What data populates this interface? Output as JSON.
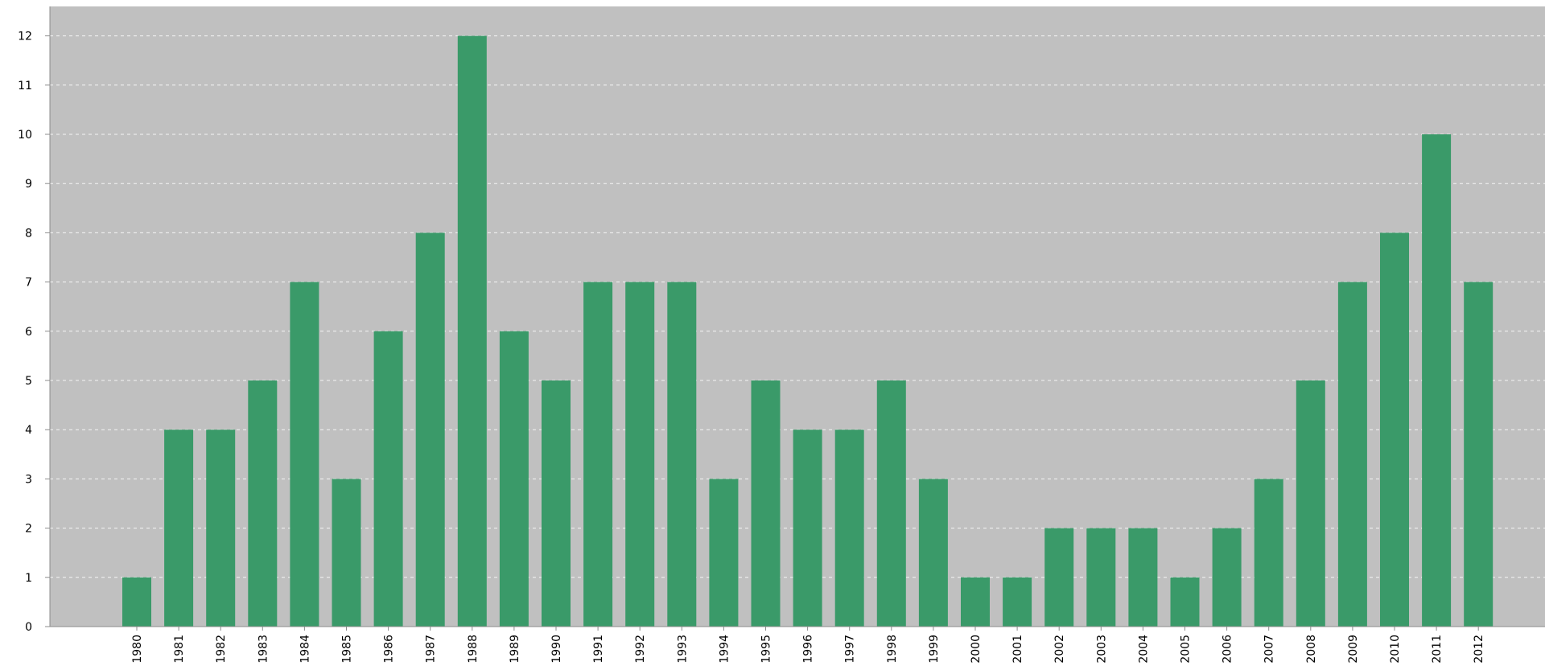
{
  "chart_data": {
    "type": "bar",
    "title": "",
    "xlabel": "",
    "ylabel": "",
    "categories": [
      "1980",
      "1981",
      "1982",
      "1983",
      "1984",
      "1985",
      "1986",
      "1987",
      "1988",
      "1989",
      "1990",
      "1991",
      "1992",
      "1993",
      "1994",
      "1995",
      "1996",
      "1997",
      "1998",
      "1999",
      "2000",
      "2001",
      "2002",
      "2003",
      "2004",
      "2005",
      "2006",
      "2007",
      "2008",
      "2009",
      "2010",
      "2011",
      "2012"
    ],
    "values": [
      1,
      4,
      4,
      5,
      7,
      3,
      6,
      8,
      12,
      6,
      5,
      7,
      7,
      7,
      3,
      5,
      4,
      4,
      5,
      3,
      1,
      1,
      2,
      2,
      2,
      1,
      2,
      3,
      5,
      7,
      8,
      10,
      7
    ],
    "ylim": [
      0,
      12
    ],
    "yticks": [
      "0",
      "1",
      "2",
      "3",
      "4",
      "5",
      "6",
      "7",
      "8",
      "9",
      "10",
      "11",
      "12"
    ],
    "grid": true,
    "legend": "none",
    "colors": {
      "bar": "#3a9a69",
      "plot_background": "#c0c0c0",
      "gridline": "#ffffff",
      "axis": "#8c8c8c"
    }
  }
}
